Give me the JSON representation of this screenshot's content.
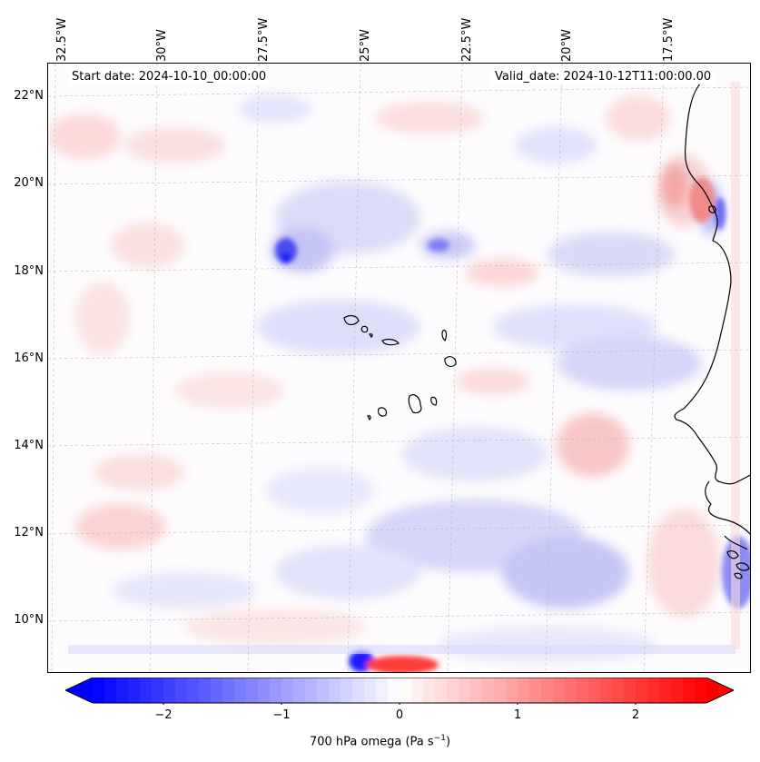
{
  "map": {
    "start_date": "Start date: 2024-10-10_00:00:00",
    "valid_date": "Valid_date: 2024-10-12T11:00:00.00",
    "lon_labels": [
      "32.5°W",
      "30°W",
      "27.5°W",
      "25°W",
      "22.5°W",
      "20°W",
      "17.5°W"
    ],
    "lat_labels": [
      "22°N",
      "20°N",
      "18°N",
      "16°N",
      "14°N",
      "12°N",
      "10°N"
    ],
    "field": "700 hPa omega",
    "units": "Pa s⁻¹",
    "cmap_colors": {
      "negative": "#0000ff",
      "zero": "#ffffff",
      "positive": "#ff0000"
    },
    "coastline_color": "#000000"
  },
  "colorbar": {
    "min": -2.6,
    "max": 2.6,
    "ticks": [
      "−2",
      "−1",
      "0",
      "1",
      "2"
    ],
    "tick_values": [
      -2,
      -1,
      0,
      1,
      2
    ],
    "label_text": "700 hPa omega (Pa s",
    "label_sup": "−1",
    "label_close": ")"
  }
}
